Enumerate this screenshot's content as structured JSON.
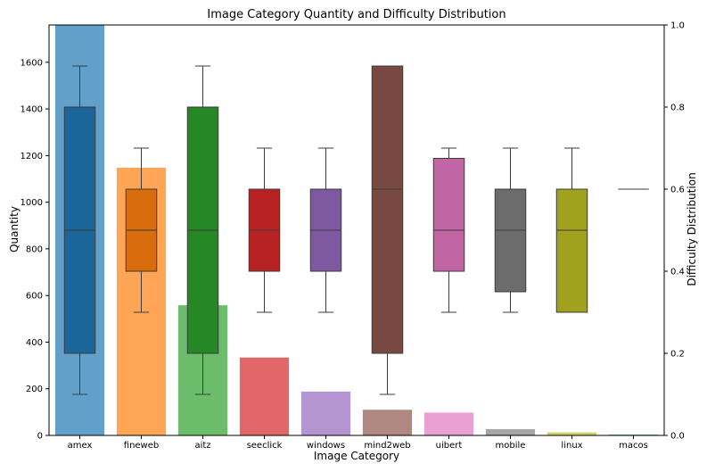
{
  "chart_data": {
    "type": "bar",
    "title": "Image Category Quantity and Difficulty Distribution",
    "xlabel": "Image Category",
    "ylabel": "Quantity",
    "y2label": "Difficulty Distribution",
    "categories": [
      "amex",
      "fineweb",
      "aitz",
      "seeclick",
      "windows",
      "mind2web",
      "uibert",
      "mobile",
      "linux",
      "macos"
    ],
    "values": [
      1760,
      1148,
      558,
      334,
      188,
      110,
      98,
      27,
      13,
      4
    ],
    "ylim": [
      0,
      1760
    ],
    "yticks": [
      0,
      200,
      400,
      600,
      800,
      1000,
      1200,
      1400,
      1600
    ],
    "y2lim": [
      0,
      1.0
    ],
    "y2ticks": [
      "0.0",
      "0.2",
      "0.4",
      "0.6",
      "0.8",
      "1.0"
    ],
    "bar_colors": [
      "#1f77b4",
      "#ff7f0e",
      "#2ca02c",
      "#d62728",
      "#9467bd",
      "#8c564b",
      "#e377c2",
      "#7f7f7f",
      "#bcbd22",
      "#17becf"
    ],
    "boxplots": [
      {
        "category": "amex",
        "whisker_low": 0.1,
        "q1": 0.2,
        "median": 0.5,
        "q3": 0.8,
        "whisker_high": 0.9
      },
      {
        "category": "fineweb",
        "whisker_low": 0.3,
        "q1": 0.4,
        "median": 0.5,
        "q3": 0.6,
        "whisker_high": 0.7
      },
      {
        "category": "aitz",
        "whisker_low": 0.1,
        "q1": 0.2,
        "median": 0.5,
        "q3": 0.8,
        "whisker_high": 0.9
      },
      {
        "category": "seeclick",
        "whisker_low": 0.3,
        "q1": 0.4,
        "median": 0.5,
        "q3": 0.6,
        "whisker_high": 0.7
      },
      {
        "category": "windows",
        "whisker_low": 0.3,
        "q1": 0.4,
        "median": 0.5,
        "q3": 0.6,
        "whisker_high": 0.7
      },
      {
        "category": "mind2web",
        "whisker_low": 0.1,
        "q1": 0.2,
        "median": 0.6,
        "q3": 0.9,
        "whisker_high": 0.9
      },
      {
        "category": "uibert",
        "whisker_low": 0.3,
        "q1": 0.4,
        "median": 0.5,
        "q3": 0.675,
        "whisker_high": 0.7
      },
      {
        "category": "mobile",
        "whisker_low": 0.3,
        "q1": 0.35,
        "median": 0.5,
        "q3": 0.6,
        "whisker_high": 0.7
      },
      {
        "category": "linux",
        "whisker_low": 0.3,
        "q1": 0.3,
        "median": 0.5,
        "q3": 0.6,
        "whisker_high": 0.7
      },
      {
        "category": "macos",
        "whisker_low": 0.6,
        "q1": 0.6,
        "median": 0.6,
        "q3": 0.6,
        "whisker_high": 0.6
      }
    ],
    "grid": false,
    "legend": "none"
  }
}
